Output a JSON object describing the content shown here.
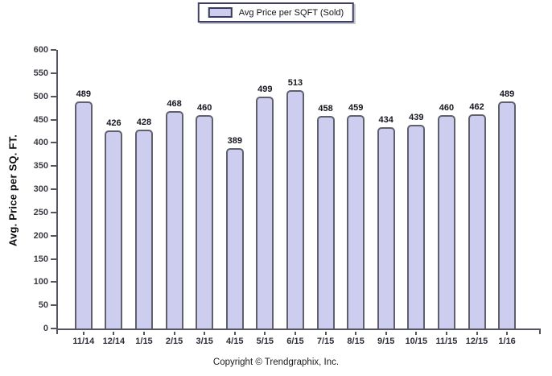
{
  "legend": {
    "label": "Avg Price per SQFT (Sold)"
  },
  "y_axis": {
    "title": "Avg. Price per SQ. FT."
  },
  "footer": {
    "copyright": "Copyright © Trendgraphix, Inc."
  },
  "colors": {
    "bar_fill": "#cdcdf0",
    "bar_border": "#60606c",
    "axis": "#55555f",
    "legend_border": "#3f3f66"
  },
  "chart_data": {
    "type": "bar",
    "title": "",
    "legend": [
      "Avg Price per SQFT (Sold)"
    ],
    "categories": [
      "11/14",
      "12/14",
      "1/15",
      "2/15",
      "3/15",
      "4/15",
      "5/15",
      "6/15",
      "7/15",
      "8/15",
      "9/15",
      "10/15",
      "11/15",
      "12/15",
      "1/16"
    ],
    "values": [
      489,
      426,
      428,
      468,
      460,
      389,
      499,
      513,
      458,
      459,
      434,
      439,
      460,
      462,
      489
    ],
    "xlabel": "",
    "ylabel": "Avg. Price per SQ. FT.",
    "ylim": [
      0,
      600
    ],
    "ytick_step": 50,
    "grid": false,
    "legend_position": "top-center",
    "value_labels_shown": true
  }
}
